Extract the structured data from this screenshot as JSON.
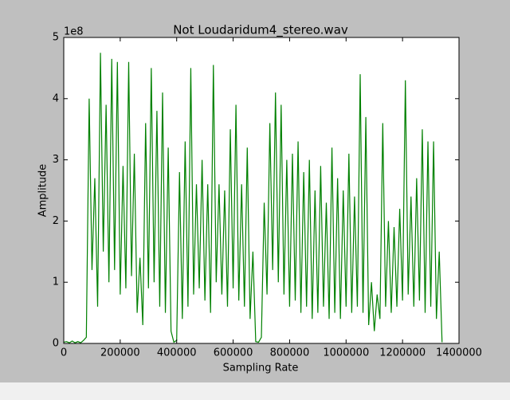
{
  "chart_data": {
    "type": "line",
    "title": "Not Loudaridum4_stereo.wav",
    "x_label": "Sampling Rate",
    "y_label": "Amplitude",
    "y_offset_label": "1e8",
    "xlim": [
      0,
      1400000
    ],
    "xticks": [
      0,
      200000,
      400000,
      600000,
      800000,
      1000000,
      1200000,
      1400000
    ],
    "ylim": [
      0,
      5
    ],
    "yticks": [
      0,
      1,
      2,
      3,
      4,
      5
    ],
    "x": [
      0,
      10000,
      20000,
      30000,
      40000,
      50000,
      60000,
      70000,
      80000,
      90000,
      100000,
      110000,
      120000,
      130000,
      140000,
      150000,
      160000,
      170000,
      180000,
      190000,
      200000,
      210000,
      220000,
      230000,
      240000,
      250000,
      260000,
      270000,
      280000,
      290000,
      300000,
      310000,
      320000,
      330000,
      340000,
      350000,
      360000,
      370000,
      380000,
      390000,
      400000,
      410000,
      420000,
      430000,
      440000,
      450000,
      460000,
      470000,
      480000,
      490000,
      500000,
      510000,
      520000,
      530000,
      540000,
      550000,
      560000,
      570000,
      580000,
      590000,
      600000,
      610000,
      620000,
      630000,
      640000,
      650000,
      660000,
      670000,
      680000,
      690000,
      700000,
      710000,
      720000,
      730000,
      740000,
      750000,
      760000,
      770000,
      780000,
      790000,
      800000,
      810000,
      820000,
      830000,
      840000,
      850000,
      860000,
      870000,
      880000,
      890000,
      900000,
      910000,
      920000,
      930000,
      940000,
      950000,
      960000,
      970000,
      980000,
      990000,
      1000000,
      1010000,
      1020000,
      1030000,
      1040000,
      1050000,
      1060000,
      1070000,
      1080000,
      1090000,
      1100000,
      1110000,
      1120000,
      1130000,
      1140000,
      1150000,
      1160000,
      1170000,
      1180000,
      1190000,
      1200000,
      1210000,
      1220000,
      1230000,
      1240000,
      1250000,
      1260000,
      1270000,
      1280000,
      1290000,
      1300000,
      1310000,
      1320000,
      1330000,
      1340000
    ],
    "series": [
      {
        "name": "Amplitude",
        "color": "#008000",
        "values": [
          0.02,
          0.03,
          0.01,
          0.04,
          0.01,
          0.03,
          0.01,
          0.05,
          0.1,
          4.0,
          1.2,
          2.7,
          0.6,
          4.75,
          1.5,
          3.9,
          1.0,
          4.65,
          1.2,
          4.6,
          0.8,
          2.9,
          0.9,
          4.6,
          1.1,
          3.1,
          0.5,
          1.4,
          0.3,
          3.6,
          0.9,
          4.5,
          1.0,
          3.8,
          0.6,
          4.1,
          0.5,
          3.2,
          0.2,
          0.02,
          0.05,
          2.8,
          0.4,
          3.3,
          0.6,
          4.5,
          0.8,
          2.6,
          0.9,
          3.0,
          0.7,
          2.6,
          0.5,
          4.55,
          1.0,
          2.6,
          0.8,
          2.5,
          0.6,
          3.5,
          0.9,
          3.9,
          0.7,
          2.6,
          0.6,
          3.2,
          0.4,
          1.5,
          0.03,
          0.02,
          0.1,
          2.3,
          0.8,
          3.6,
          1.2,
          4.1,
          1.0,
          3.9,
          0.8,
          3.0,
          0.6,
          3.1,
          0.7,
          3.3,
          0.5,
          2.8,
          0.6,
          3.0,
          0.4,
          2.5,
          0.5,
          2.9,
          0.6,
          2.3,
          0.4,
          3.2,
          0.5,
          2.7,
          0.4,
          2.5,
          0.6,
          3.1,
          0.5,
          2.4,
          0.6,
          4.4,
          0.5,
          3.7,
          0.3,
          1.0,
          0.2,
          0.8,
          0.4,
          3.6,
          0.6,
          2.0,
          0.5,
          1.9,
          0.6,
          2.2,
          0.7,
          4.3,
          0.8,
          2.4,
          0.6,
          2.7,
          0.7,
          3.5,
          0.5,
          3.3,
          0.6,
          3.3,
          0.4,
          1.5,
          0.02
        ]
      }
    ]
  }
}
